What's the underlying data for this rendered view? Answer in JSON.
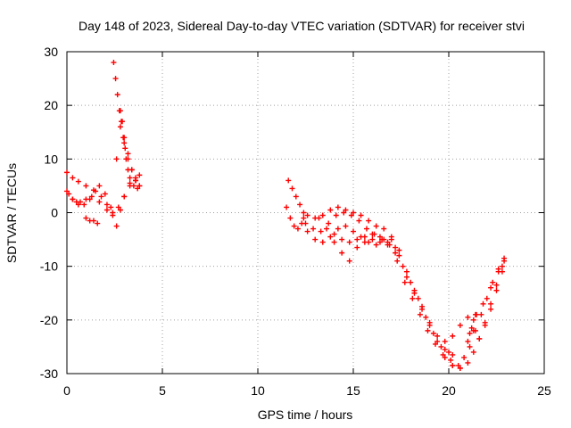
{
  "chart_data": {
    "type": "scatter",
    "title": "Day 148 of 2023, Sidereal Day-to-day VTEC variation (SDTVAR) for receiver stvi",
    "xlabel": "GPS time / hours",
    "ylabel": "SDTVAR / TECUs",
    "xlim": [
      0,
      25
    ],
    "ylim": [
      -30,
      30
    ],
    "xticks": [
      0,
      5,
      10,
      15,
      20,
      25
    ],
    "yticks": [
      -30,
      -20,
      -10,
      0,
      10,
      20,
      30
    ],
    "grid": true,
    "marker": "+",
    "color": "#ff0000",
    "series": [
      {
        "x": [
          0.0,
          0.3,
          0.6,
          1.0,
          1.4,
          1.8,
          2.1,
          2.4,
          2.6,
          2.8,
          3.0,
          3.3,
          3.6,
          3.8
        ],
        "y": [
          7.5,
          6.5,
          5.8,
          5.0,
          4.2,
          3.0,
          1.5,
          0.0,
          -2.5,
          0.5,
          3.0,
          5.0,
          6.0,
          7.0
        ]
      },
      {
        "x": [
          0.0,
          0.3,
          0.6,
          0.9,
          1.2,
          1.5,
          1.7,
          2.0,
          2.3,
          2.6,
          2.8,
          3.0,
          3.2,
          3.4,
          3.6,
          3.8
        ],
        "y": [
          4.0,
          2.5,
          1.5,
          1.5,
          2.5,
          4.0,
          5.0,
          3.5,
          1.0,
          10.0,
          16.0,
          14.0,
          11.0,
          8.0,
          6.0,
          5.0
        ]
      },
      {
        "x": [
          0.1,
          0.3,
          0.5,
          0.7,
          1.0,
          1.3,
          1.7,
          2.1,
          2.4,
          2.7,
          3.0,
          3.3,
          3.6
        ],
        "y": [
          3.5,
          2.5,
          2.0,
          2.0,
          2.5,
          3.0,
          2.0,
          0.5,
          -0.5,
          1.0,
          3.0,
          5.5,
          6.5
        ]
      },
      {
        "x": [
          1.0,
          1.2,
          1.4,
          1.6
        ],
        "y": [
          -1.0,
          -1.5,
          -1.5,
          -2.0
        ]
      },
      {
        "x": [
          2.45,
          2.55,
          2.65,
          2.75,
          2.85,
          2.95,
          3.05,
          3.2,
          3.4,
          3.6,
          3.8
        ],
        "y": [
          28.0,
          25.0,
          22.0,
          19.0,
          17.0,
          14.0,
          12.0,
          10.0,
          8.0,
          6.0,
          5.0
        ]
      },
      {
        "x": [
          2.8,
          2.9,
          3.0,
          3.1,
          3.2,
          3.3,
          3.5,
          3.7
        ],
        "y": [
          19.0,
          17.0,
          13.0,
          10.0,
          8.0,
          6.5,
          5.0,
          4.5
        ]
      },
      {
        "x": [
          11.6,
          11.8,
          12.0,
          12.2,
          12.4
        ],
        "y": [
          6.0,
          4.5,
          3.0,
          1.5,
          0.0
        ]
      },
      {
        "x": [
          11.5,
          11.7,
          11.9,
          12.1,
          12.3,
          12.4
        ],
        "y": [
          1.0,
          -1.0,
          -2.5,
          -3.0,
          -2.0,
          -1.0
        ]
      },
      {
        "x": [
          12.6,
          13.0,
          13.4,
          13.8,
          14.2,
          14.6,
          15.0,
          15.4,
          15.8,
          16.2,
          16.6,
          17.0,
          17.4,
          17.8,
          18.2,
          18.6,
          19.0,
          19.4,
          19.8,
          20.2,
          20.6
        ],
        "y": [
          -0.5,
          -1.0,
          -0.5,
          0.5,
          1.0,
          0.5,
          0.0,
          -0.5,
          -1.5,
          -2.5,
          -3.0,
          -5.0,
          -8.0,
          -12.0,
          -15.0,
          -18.0,
          -21.0,
          -24.0,
          -27.0,
          -28.5,
          -29.0
        ]
      },
      {
        "x": [
          12.5,
          12.9,
          13.3,
          13.7,
          14.1,
          14.5,
          14.9,
          15.3,
          15.7,
          16.1,
          16.5,
          16.9,
          17.3,
          17.7,
          18.1,
          18.5,
          18.9,
          19.3,
          19.7,
          20.1
        ],
        "y": [
          -2.0,
          -3.0,
          -3.5,
          -2.0,
          -0.5,
          0.0,
          -0.5,
          -1.5,
          -3.0,
          -4.0,
          -5.0,
          -6.0,
          -9.0,
          -13.0,
          -16.0,
          -19.0,
          -22.0,
          -24.5,
          -26.5,
          -27.5
        ]
      },
      {
        "x": [
          12.6,
          13.0,
          13.4,
          13.8,
          14.2,
          14.6,
          15.0,
          15.4,
          15.8,
          16.2,
          16.6,
          17.0,
          17.4,
          17.8,
          18.2,
          18.6,
          19.0,
          19.4,
          19.8,
          20.2
        ],
        "y": [
          -3.5,
          -5.0,
          -5.5,
          -4.5,
          -3.0,
          -2.5,
          -3.5,
          -4.5,
          -5.5,
          -6.0,
          -5.0,
          -4.5,
          -7.0,
          -11.0,
          -14.5,
          -17.5,
          -20.5,
          -23.0,
          -25.5,
          -26.5
        ]
      },
      {
        "x": [
          13.2,
          13.6,
          14.0,
          14.4,
          14.8,
          15.2,
          15.6,
          16.0,
          16.4,
          16.8,
          17.2,
          17.6,
          18.0,
          18.4,
          18.8,
          19.2,
          19.6,
          20.0
        ],
        "y": [
          -1.0,
          -3.0,
          -5.5,
          -7.5,
          -9.0,
          -6.5,
          -5.5,
          -5.0,
          -5.5,
          -6.0,
          -7.5,
          -10.0,
          -13.0,
          -16.0,
          -19.5,
          -22.5,
          -25.0,
          -26.0
        ]
      },
      {
        "x": [
          14.0,
          14.4,
          14.8,
          15.2,
          15.6,
          16.0,
          16.4,
          16.8,
          17.2
        ],
        "y": [
          -4.0,
          -5.0,
          -5.5,
          -5.0,
          -4.5,
          -4.0,
          -4.5,
          -5.5,
          -6.5
        ]
      },
      {
        "x": [
          20.2,
          20.5,
          20.8,
          21.1,
          21.4,
          21.7,
          22.0,
          22.3,
          22.6,
          22.9
        ],
        "y": [
          -28.5,
          -28.5,
          -27.0,
          -25.0,
          -22.0,
          -19.0,
          -16.0,
          -13.0,
          -10.5,
          -8.5
        ]
      },
      {
        "x": [
          19.8,
          20.2,
          20.6,
          21.0,
          21.4,
          21.8,
          22.2,
          22.6,
          22.9
        ],
        "y": [
          -24.0,
          -23.0,
          -21.0,
          -19.5,
          -19.0,
          -17.0,
          -14.0,
          -11.0,
          -9.0
        ]
      },
      {
        "x": [
          20.6,
          21.0,
          21.3,
          21.6,
          21.9,
          22.2,
          22.5,
          22.8
        ],
        "y": [
          -29.0,
          -28.0,
          -26.0,
          -23.5,
          -20.5,
          -17.0,
          -13.5,
          -10.0
        ]
      },
      {
        "x": [
          21.3,
          21.6,
          21.9,
          22.2,
          22.5,
          22.8
        ],
        "y": [
          -22.0,
          -23.5,
          -21.0,
          -18.0,
          -14.5,
          -11.0
        ]
      },
      {
        "x": [
          21.0,
          21.1,
          21.2,
          21.3,
          21.45
        ],
        "y": [
          -24.0,
          -22.5,
          -21.5,
          -20.0,
          -19.0
        ]
      }
    ]
  }
}
